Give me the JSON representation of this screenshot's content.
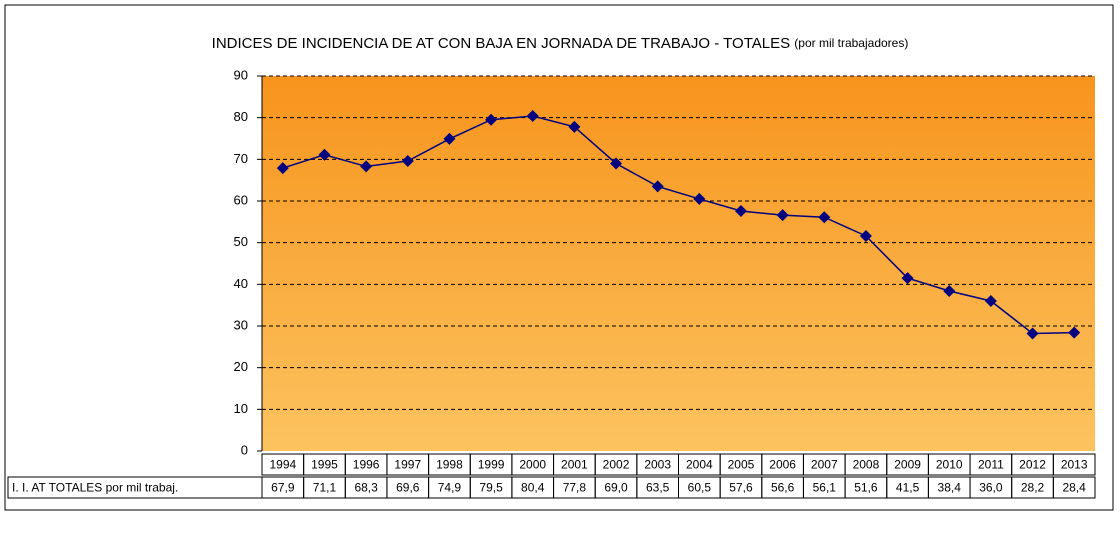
{
  "chart_data": {
    "type": "line",
    "title": "INDICES DE INCIDENCIA DE AT CON BAJA EN JORNADA DE TRABAJO - TOTALES",
    "subtitle": "(por mil trabajadores)",
    "categories": [
      "1994",
      "1995",
      "1996",
      "1997",
      "1998",
      "1999",
      "2000",
      "2001",
      "2002",
      "2003",
      "2004",
      "2005",
      "2006",
      "2007",
      "2008",
      "2009",
      "2010",
      "2011",
      "2012",
      "2013"
    ],
    "series": [
      {
        "name": "I. I. AT TOTALES por mil trabaj.",
        "color": "#000080",
        "values": [
          67.9,
          71.1,
          68.3,
          69.6,
          74.9,
          79.5,
          80.4,
          77.8,
          69.0,
          63.5,
          60.5,
          57.6,
          56.6,
          56.1,
          51.6,
          41.5,
          38.4,
          36.0,
          28.2,
          28.4
        ],
        "value_labels": [
          "67,9",
          "71,1",
          "68,3",
          "69,6",
          "74,9",
          "79,5",
          "80,4",
          "77,8",
          "69,0",
          "63,5",
          "60,5",
          "57,6",
          "56,6",
          "56,1",
          "51,6",
          "41,5",
          "38,4",
          "36,0",
          "28,2",
          "28,4"
        ]
      }
    ],
    "ylim": [
      0,
      90
    ],
    "yticks": [
      0,
      10,
      20,
      30,
      40,
      50,
      60,
      70,
      80,
      90
    ],
    "grid": true
  }
}
